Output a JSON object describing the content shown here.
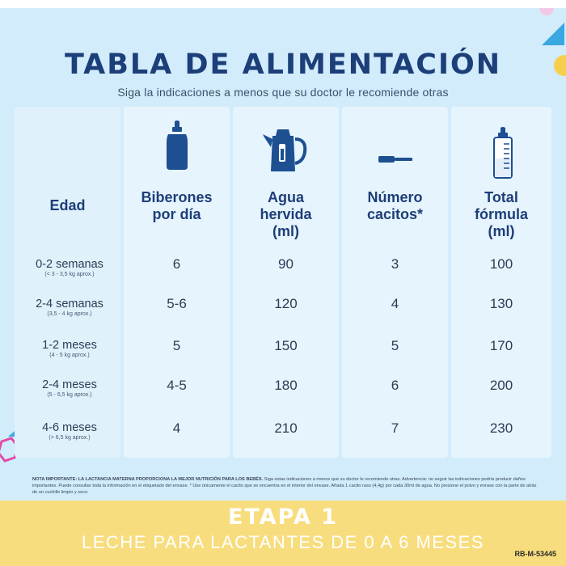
{
  "title": "TABLA DE ALIMENTACIÓN",
  "subtitle": "Siga la indicaciones a menos que su doctor le recomiende otras",
  "icons": {
    "col1": "baby-bottle-icon",
    "col2": "kettle-icon",
    "col3": "scoop-icon",
    "col4": "graduated-bottle-icon"
  },
  "headers": {
    "edad": "Edad",
    "biberones": [
      "Biberones",
      "por día"
    ],
    "agua": [
      "Agua",
      "hervida",
      "(ml)"
    ],
    "cacitos": [
      "Número",
      "cacitos*"
    ],
    "total": [
      "Total",
      "fórmula",
      "(ml)"
    ]
  },
  "rows": [
    {
      "age": "0-2 semanas",
      "weight": "(< 3 - 3,5 kg aprox.)",
      "biberones": "6",
      "agua": "90",
      "cacitos": "3",
      "total": "100"
    },
    {
      "age": "2-4 semanas",
      "weight": "(3,5 - 4 kg aprox.)",
      "biberones": "5-6",
      "agua": "120",
      "cacitos": "4",
      "total": "130"
    },
    {
      "age": "1-2 meses",
      "weight": "(4 - 5 kg aprox.)",
      "biberones": "5",
      "agua": "150",
      "cacitos": "5",
      "total": "170"
    },
    {
      "age": "2-4 meses",
      "weight": "(5 - 6,5 kg aprox.)",
      "biberones": "4-5",
      "agua": "180",
      "cacitos": "6",
      "total": "200"
    },
    {
      "age": "4-6 meses",
      "weight": "(> 6,5 kg aprox.)",
      "biberones": "4",
      "agua": "210",
      "cacitos": "7",
      "total": "230"
    }
  ],
  "note": {
    "bold": "NOTA IMPORTANTE: LA LACTANCIA MATERNA PROPORCIONA LA MEJOR NUTRICIÓN PARA LOS BEBÉS.",
    "text": "Siga estas indicaciones a menos que su doctor le recomiende otras. Advertencia: no seguir las indicaciones podría producir daños importantes. Puede consultar toda la información en el etiquetado del envase. * Use únicamente el cacito que se encuentra en el interior del envase. Añada 1 cacito raso (4,4g) por cada 30ml de agua. No presione el polvo y enrase con la parte de atrás de un cuchillo limpio y seco."
  },
  "stage": "ETAPA 1",
  "product": "LECHE PARA LACTANTES DE 0 A 6 MESES",
  "code": "RB-M-53445",
  "colors": {
    "background": "#d2ecfb",
    "column": "#e6f4fd",
    "title": "#1c3f7a",
    "icon": "#1d4f91",
    "band": "#f8dd7e",
    "decor_blue": "#3aa8e0",
    "decor_yellow": "#f6cf4e",
    "decor_pink": "#e24ba8"
  }
}
